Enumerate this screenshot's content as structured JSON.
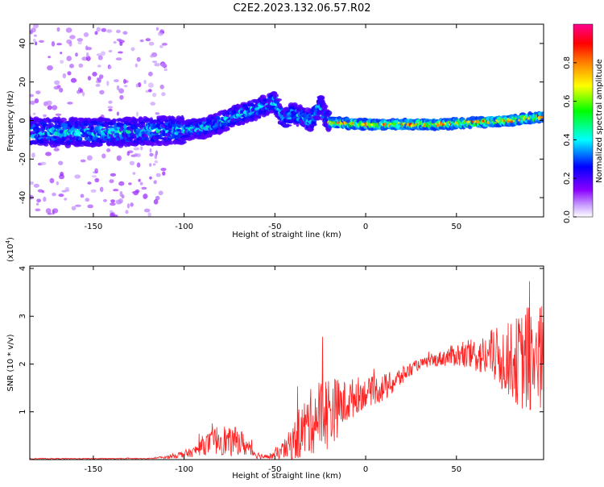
{
  "figure": {
    "title": "C2E2.2023.132.06.57.R02"
  },
  "chart_data": [
    {
      "type": "heatmap",
      "name": "spectrogram",
      "xlabel": "Height of straight line (km)",
      "ylabel": "Frequency (Hz)",
      "xlim": [
        -185,
        98
      ],
      "ylim": [
        -50,
        50
      ],
      "xticks": [
        -150,
        -100,
        -50,
        0,
        50
      ],
      "yticks": [
        -40,
        -20,
        0,
        20,
        40
      ],
      "grid": false,
      "colorbar": {
        "label": "Normalized spectral amplitude",
        "range": [
          0.0,
          1.0
        ],
        "ticks": [
          "0.0",
          "0.2",
          "0.4",
          "0.6",
          "0.8"
        ],
        "colormap": [
          "#ffffff",
          "#8b00ff",
          "#0000ff",
          "#00ffff",
          "#00ff00",
          "#ffff00",
          "#ff8000",
          "#ff0000",
          "#ff00a0"
        ]
      },
      "ridge": {
        "description_points_x": [
          -185,
          -160,
          -130,
          -110,
          -100,
          -90,
          -80,
          -70,
          -60,
          -50,
          -45,
          -40,
          -35,
          -30,
          -25,
          -20,
          0,
          20,
          40,
          60,
          80,
          98
        ],
        "description_points_y": [
          -6,
          -6,
          -6,
          -5,
          -5,
          -4,
          -1,
          3,
          6,
          10,
          0,
          4,
          2,
          0,
          8,
          -1,
          -2,
          -2,
          -2,
          -1,
          0,
          2
        ]
      }
    },
    {
      "type": "line",
      "name": "snr",
      "xlabel": "Height of straight line (km)",
      "ylabel": "SNR (10 * v/v)",
      "y_exponent_label": "(x10",
      "y_exponent_power": "4",
      "y_exponent_close": ")",
      "xlim": [
        -185,
        98
      ],
      "ylim": [
        0,
        4.05
      ],
      "xticks": [
        -150,
        -100,
        -50,
        0,
        50
      ],
      "yticks": [
        1,
        2,
        3,
        4
      ],
      "grid": false,
      "series": [
        {
          "color": "#ff2020",
          "envelope_x": [
            -185,
            -120,
            -110,
            -100,
            -95,
            -90,
            -85,
            -80,
            -75,
            -70,
            -65,
            -60,
            -55,
            -50,
            -45,
            -40,
            -35,
            -30,
            -25,
            -20,
            -15,
            -10,
            -5,
            0,
            5,
            10,
            15,
            20,
            25,
            30,
            35,
            40,
            45,
            50,
            55,
            60,
            65,
            70,
            75,
            80,
            85,
            90,
            95,
            98
          ],
          "envelope_mean": [
            0.02,
            0.02,
            0.05,
            0.12,
            0.15,
            0.3,
            0.35,
            0.45,
            0.35,
            0.4,
            0.25,
            0.1,
            0.05,
            0.1,
            0.2,
            0.35,
            0.6,
            0.8,
            0.95,
            1.0,
            1.1,
            1.2,
            1.35,
            1.4,
            1.45,
            1.5,
            1.6,
            1.75,
            1.9,
            2.0,
            2.05,
            2.1,
            2.15,
            2.2,
            2.15,
            2.2,
            2.15,
            2.2,
            2.1,
            2.1,
            2.05,
            2.1,
            2.1,
            2.1
          ],
          "envelope_spread": [
            0.01,
            0.01,
            0.03,
            0.08,
            0.1,
            0.2,
            0.25,
            0.35,
            0.3,
            0.3,
            0.2,
            0.08,
            0.04,
            0.1,
            0.2,
            0.4,
            0.6,
            0.7,
            0.8,
            0.8,
            0.6,
            0.45,
            0.4,
            0.3,
            0.3,
            0.3,
            0.25,
            0.2,
            0.15,
            0.1,
            0.12,
            0.15,
            0.2,
            0.25,
            0.3,
            0.35,
            0.45,
            0.55,
            0.7,
            0.8,
            1.0,
            1.2,
            1.3,
            1.1
          ]
        }
      ]
    }
  ]
}
